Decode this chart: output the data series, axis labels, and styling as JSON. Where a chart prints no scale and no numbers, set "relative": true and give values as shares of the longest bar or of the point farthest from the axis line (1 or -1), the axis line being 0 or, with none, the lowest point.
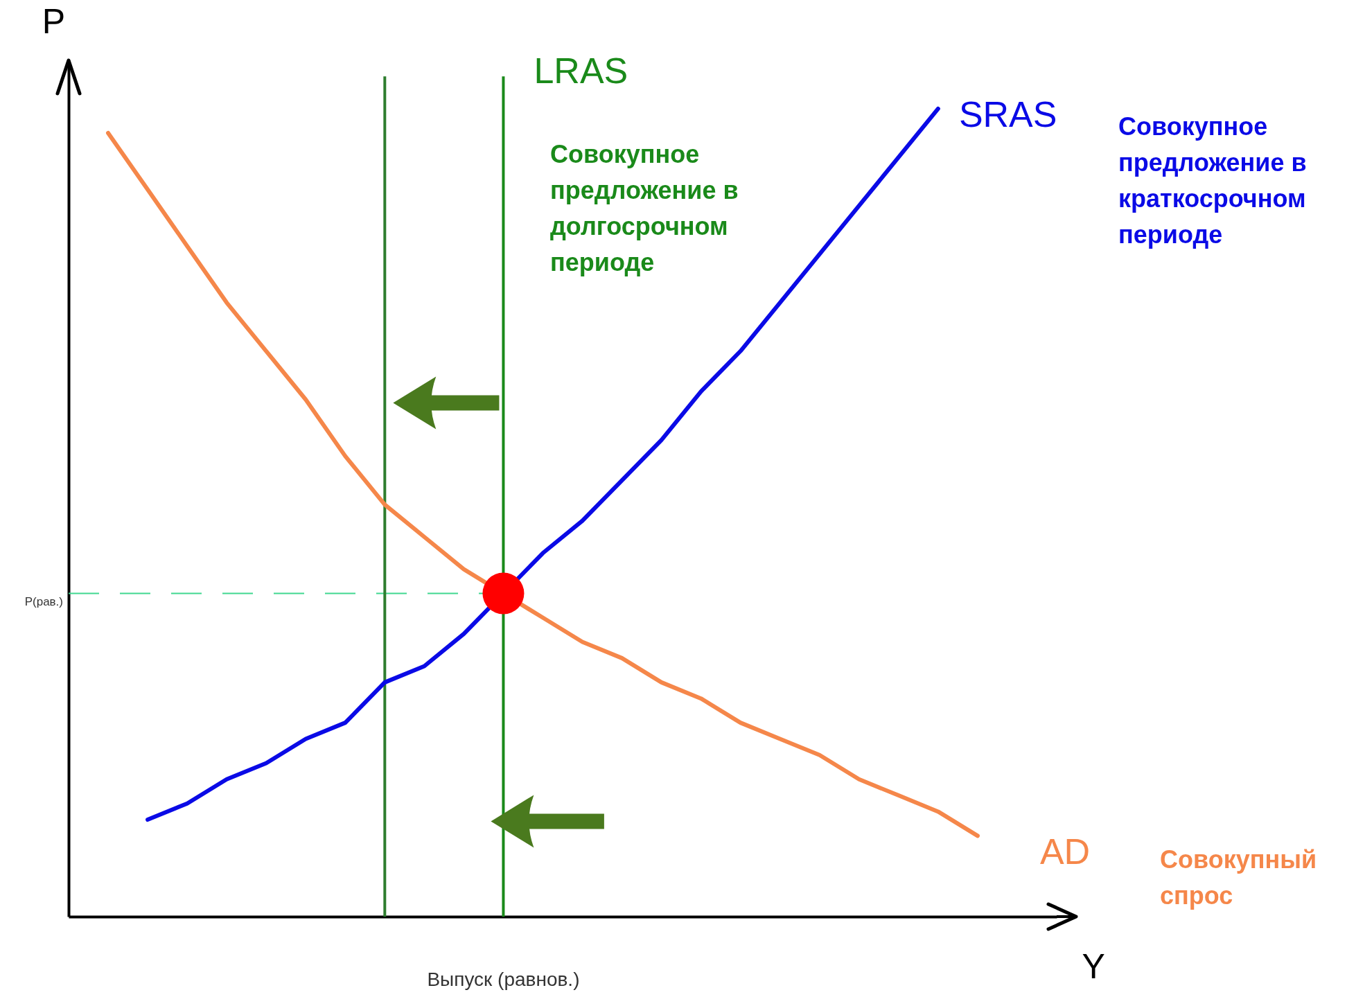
{
  "chart_data": {
    "type": "line",
    "relative": true,
    "ylabel": "P",
    "xlabel": "Y",
    "categories": [
      null,
      null,
      null,
      null,
      null,
      null,
      null,
      null,
      null,
      null,
      null,
      null,
      null,
      null,
      null,
      null,
      null,
      null,
      null,
      null,
      null,
      null,
      null,
      null,
      null,
      null
    ],
    "series": [
      {
        "name": "AD",
        "color": "#f5874a",
        "values": [
          null,
          0.97,
          0.9,
          0.83,
          0.76,
          0.7,
          0.64,
          0.57,
          0.51,
          0.47,
          0.43,
          null,
          0.37,
          0.34,
          0.32,
          0.29,
          0.27,
          0.24,
          0.22,
          0.2,
          0.17,
          0.15,
          0.13,
          0.1,
          null,
          null
        ]
      },
      {
        "name": "SRAS",
        "color": "#0a0ae6",
        "values": [
          null,
          null,
          0.12,
          0.14,
          0.17,
          0.19,
          0.22,
          0.24,
          0.29,
          0.31,
          0.35,
          null,
          0.45,
          0.49,
          0.54,
          0.59,
          0.65,
          0.7,
          0.76,
          0.82,
          0.88,
          0.94,
          1.0,
          null,
          null,
          null
        ]
      }
    ],
    "ref_lines": [
      {
        "axis": "y",
        "value": 0.4,
        "label": "P(рав.)",
        "color": "#40d890",
        "line_style": "dashed"
      }
    ],
    "annotations": [
      "Совокупное\nпредложение в\nдолгосрочном\nпериоде",
      "Совокупное\nпредложение в\nкраткосрочном\nпериоде",
      "Совокупный\nспрос",
      "Выпуск (равнов.)",
      "LRAS"
    ]
  }
}
